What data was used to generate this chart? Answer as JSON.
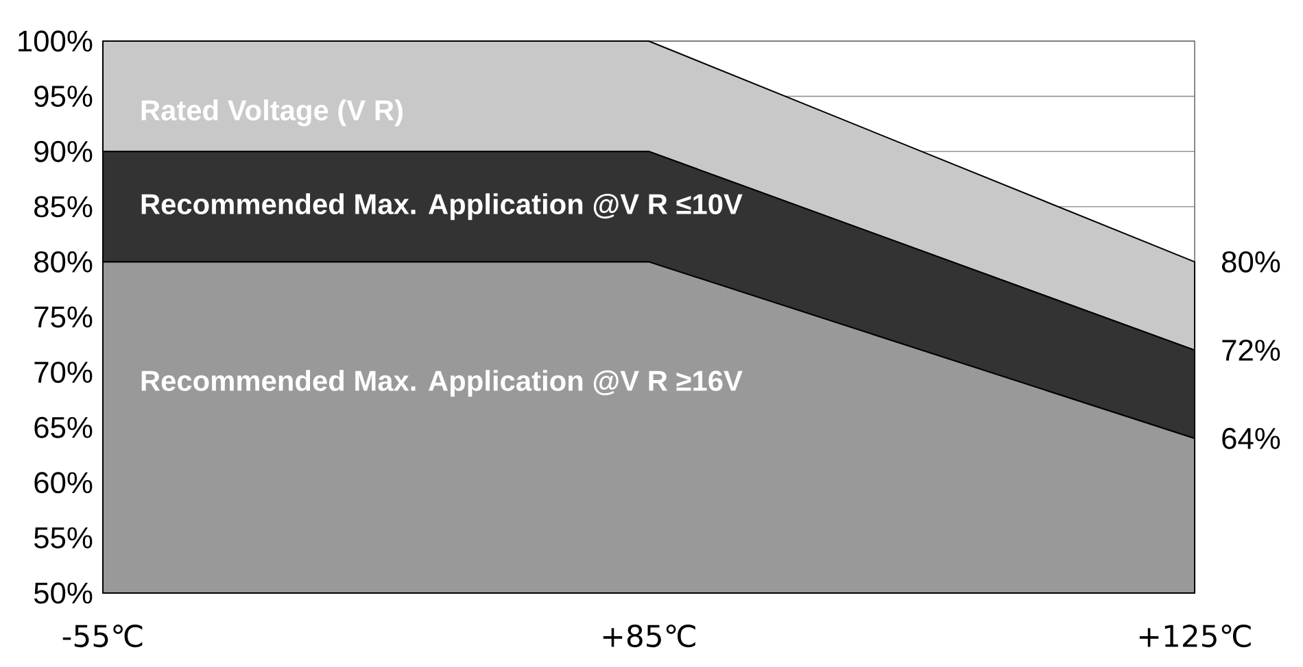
{
  "chart_data": {
    "type": "area",
    "categories": [
      "-55℃",
      "+85℃",
      "+125℃"
    ],
    "series": [
      {
        "name": "Rated Voltage (V R)",
        "color": "#c8c8c8",
        "values": [
          100,
          100,
          80
        ],
        "value_labels": [
          null,
          null,
          "80%"
        ]
      },
      {
        "name": "Recommended Max. Application @V R ≤10V",
        "color": "#333333",
        "values": [
          90,
          90,
          72
        ],
        "value_labels": [
          null,
          null,
          "72%"
        ]
      },
      {
        "name": "Recommended Max. Application @V R ≥16V",
        "color": "#999999",
        "values": [
          80,
          80,
          64
        ],
        "value_labels": [
          null,
          null,
          "64%"
        ]
      }
    ],
    "ylim": [
      50,
      100
    ],
    "yticks": [
      {
        "value": 50,
        "label": "50%"
      },
      {
        "value": 55,
        "label": "55%"
      },
      {
        "value": 60,
        "label": "60%"
      },
      {
        "value": 65,
        "label": "65%"
      },
      {
        "value": 70,
        "label": "70%"
      },
      {
        "value": 75,
        "label": "75%"
      },
      {
        "value": 80,
        "label": "80%"
      },
      {
        "value": 85,
        "label": "85%"
      },
      {
        "value": 90,
        "label": "90%"
      },
      {
        "value": 95,
        "label": "95%"
      },
      {
        "value": 100,
        "label": "100%"
      }
    ],
    "grid": "y"
  }
}
